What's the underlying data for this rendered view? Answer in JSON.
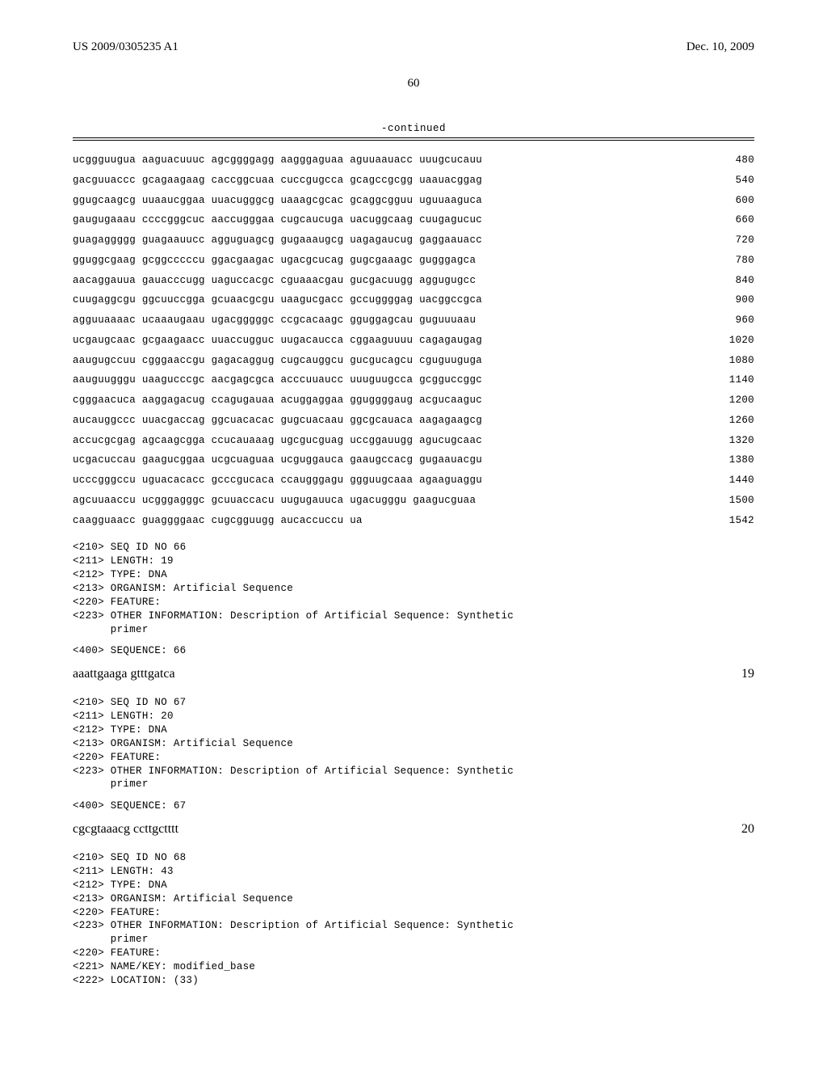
{
  "header": {
    "pub_number": "US 2009/0305235 A1",
    "pub_date": "Dec. 10, 2009"
  },
  "page_number": "60",
  "continued_label": "-continued",
  "seq_rows": [
    {
      "g": "ucggguugua aaguacuuuc agcggggagg aagggaguaa aguuaauacc uuugcucauu",
      "n": "480"
    },
    {
      "g": "gacguuaccc gcagaagaag caccggcuaa cuccgugcca gcagccgcgg uaauacggag",
      "n": "540"
    },
    {
      "g": "ggugcaagcg uuaaucggaa uuacugggcg uaaagcgcac gcaggcgguu uguuaaguca",
      "n": "600"
    },
    {
      "g": "gaugugaaau ccccgggcuc aaccugggaa cugcaucuga uacuggcaag cuugagucuc",
      "n": "660"
    },
    {
      "g": "guagaggggg guagaauucc agguguagcg gugaaaugcg uagagaucug gaggaauacc",
      "n": "720"
    },
    {
      "g": "gguggcgaag gcggcccccu ggacgaagac ugacgcucag gugcgaaagc gugggagca",
      "n": "780"
    },
    {
      "g": "aacaggauua gauacccugg uaguccacgc cguaaacgau gucgacuugg aggugugcc",
      "n": "840"
    },
    {
      "g": "cuugaggcgu ggcuuccgga gcuaacgcgu uaagucgacc gccuggggag uacggccgca",
      "n": "900"
    },
    {
      "g": "agguuaaaac ucaaaugaau ugacgggggc ccgcacaagc gguggagcau guguuuaau",
      "n": "960"
    },
    {
      "g": "ucgaugcaac gcgaagaacc uuaccugguc uugacaucca cggaaguuuu cagagaugag",
      "n": "1020"
    },
    {
      "g": "aaugugccuu cgggaaccgu gagacaggug cugcauggcu gucgucagcu cguguuguga",
      "n": "1080"
    },
    {
      "g": "aauguugggu uaagucccgc aacgagcgca acccuuaucc uuuguugcca gcgguccggc",
      "n": "1140"
    },
    {
      "g": "cgggaacuca aaggagacug ccagugauaa acuggaggaa gguggggaug acgucaaguc",
      "n": "1200"
    },
    {
      "g": "aucauggccc uuacgaccag ggcuacacac gugcuacaau ggcgcauaca aagagaagcg",
      "n": "1260"
    },
    {
      "g": "accucgcgag agcaagcgga ccucauaaag ugcgucguag uccggauugg agucugcaac",
      "n": "1320"
    },
    {
      "g": "ucgacuccau gaagucggaa ucgcuaguaa ucguggauca gaaugccacg gugaauacgu",
      "n": "1380"
    },
    {
      "g": "ucccgggccu uguacacacc gcccgucaca ccaugggagu ggguugcaaa agaaguaggu",
      "n": "1440"
    },
    {
      "g": "agcuuaaccu ucgggagggc gcuuaccacu uugugauuca ugacugggu gaagucguaa",
      "n": "1500"
    },
    {
      "g": "caagguaacc guaggggaac cugcgguugg aucaccuccu ua",
      "n": "1542"
    }
  ],
  "seq66": {
    "lines": [
      "<210> SEQ ID NO 66",
      "<211> LENGTH: 19",
      "<212> TYPE: DNA",
      "<213> ORGANISM: Artificial Sequence",
      "<220> FEATURE:",
      "<223> OTHER INFORMATION: Description of Artificial Sequence: Synthetic",
      "      primer"
    ],
    "seq_label": "<400> SEQUENCE: 66",
    "seq": "aaattgaaga gtttgatca",
    "len": "19"
  },
  "seq67": {
    "lines": [
      "<210> SEQ ID NO 67",
      "<211> LENGTH: 20",
      "<212> TYPE: DNA",
      "<213> ORGANISM: Artificial Sequence",
      "<220> FEATURE:",
      "<223> OTHER INFORMATION: Description of Artificial Sequence: Synthetic",
      "      primer"
    ],
    "seq_label": "<400> SEQUENCE: 67",
    "seq": "cgcgtaaacg ccttgctttt",
    "len": "20"
  },
  "seq68": {
    "lines": [
      "<210> SEQ ID NO 68",
      "<211> LENGTH: 43",
      "<212> TYPE: DNA",
      "<213> ORGANISM: Artificial Sequence",
      "<220> FEATURE:",
      "<223> OTHER INFORMATION: Description of Artificial Sequence: Synthetic",
      "      primer",
      "<220> FEATURE:",
      "<221> NAME/KEY: modified_base",
      "<222> LOCATION: (33)"
    ]
  }
}
